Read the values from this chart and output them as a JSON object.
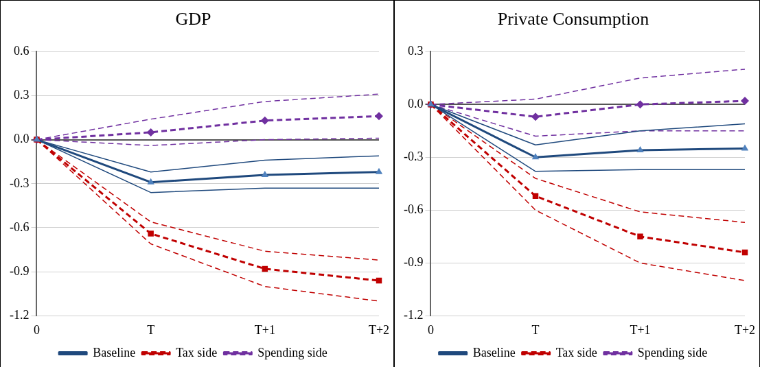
{
  "chart_data": [
    {
      "type": "line",
      "title": "GDP",
      "categories": [
        "0",
        "T",
        "T+1",
        "T+2"
      ],
      "ylim": [
        -1.2,
        0.6
      ],
      "yticks": [
        -1.2,
        {
          "value": -0.9,
          "label": "-0.9"
        },
        {
          "value": -0.6,
          "label": "-0.6"
        },
        {
          "value": -0.3,
          "label": "-0.3"
        },
        {
          "value": 0,
          "label": "0.0"
        },
        0.3,
        0.6
      ],
      "grid": "y",
      "legend": "bottom",
      "series": [
        {
          "name": "Baseline",
          "color": "#1f497d",
          "marker": "triangle",
          "line_style": "solid",
          "values": [
            0,
            -0.29,
            -0.24,
            -0.22
          ]
        },
        {
          "name": "Tax side",
          "color": "#c00000",
          "marker": "square",
          "line_style": "dashed",
          "values": [
            0,
            -0.64,
            -0.88,
            -0.96
          ]
        },
        {
          "name": "Spending side",
          "color": "#7030a0",
          "marker": "diamond",
          "line_style": "dashed",
          "values": [
            0,
            0.05,
            0.13,
            0.16
          ]
        },
        {
          "color": "#1f497d",
          "marker": "none",
          "line_style": "solid",
          "values": [
            0,
            -0.22,
            -0.14,
            -0.11
          ]
        },
        {
          "color": "#1f497d",
          "marker": "none",
          "line_style": "solid",
          "values": [
            0,
            -0.36,
            -0.33,
            -0.33
          ]
        },
        {
          "color": "#c00000",
          "marker": "none",
          "line_style": "dashed",
          "values": [
            0,
            -0.56,
            -0.76,
            -0.82
          ]
        },
        {
          "color": "#c00000",
          "marker": "none",
          "line_style": "dashed",
          "values": [
            0,
            -0.71,
            -1.0,
            -1.1
          ]
        },
        {
          "color": "#7030a0",
          "marker": "none",
          "line_style": "dashed",
          "values": [
            0,
            0.14,
            0.26,
            0.31
          ]
        },
        {
          "color": "#7030a0",
          "marker": "none",
          "line_style": "dashed",
          "values": [
            0,
            -0.04,
            0.0,
            0.01
          ]
        }
      ]
    },
    {
      "type": "line",
      "title": "Private Consumption",
      "categories": [
        "0",
        "T",
        "T+1",
        "T+2"
      ],
      "ylim": [
        -1.2,
        0.3
      ],
      "yticks": [
        -1.2,
        {
          "value": -0.9,
          "label": "-0.9"
        },
        {
          "value": -0.6,
          "label": "-0.6"
        },
        {
          "value": -0.3,
          "label": "-0.3"
        },
        {
          "value": 0,
          "label": "0.0"
        },
        0.3
      ],
      "grid": "y",
      "legend": "bottom",
      "series": [
        {
          "name": "Baseline",
          "color": "#1f497d",
          "marker": "triangle",
          "line_style": "solid",
          "values": [
            0,
            -0.3,
            -0.26,
            -0.25
          ]
        },
        {
          "name": "Tax side",
          "color": "#c00000",
          "marker": "square",
          "line_style": "dashed",
          "values": [
            0,
            -0.52,
            -0.75,
            -0.84
          ]
        },
        {
          "name": "Spending side",
          "color": "#7030a0",
          "marker": "diamond",
          "line_style": "dashed",
          "values": [
            0,
            -0.07,
            0.0,
            0.02
          ]
        },
        {
          "color": "#1f497d",
          "marker": "none",
          "line_style": "solid",
          "values": [
            0,
            -0.23,
            -0.15,
            -0.11
          ]
        },
        {
          "color": "#1f497d",
          "marker": "none",
          "line_style": "solid",
          "values": [
            0,
            -0.38,
            -0.37,
            -0.37
          ]
        },
        {
          "color": "#c00000",
          "marker": "none",
          "line_style": "dashed",
          "values": [
            0,
            -0.42,
            -0.61,
            -0.67
          ]
        },
        {
          "color": "#c00000",
          "marker": "none",
          "line_style": "dashed",
          "values": [
            0,
            -0.6,
            -0.9,
            -1.0
          ]
        },
        {
          "color": "#7030a0",
          "marker": "none",
          "line_style": "dashed",
          "values": [
            0,
            0.03,
            0.15,
            0.2
          ]
        },
        {
          "color": "#7030a0",
          "marker": "none",
          "line_style": "dashed",
          "values": [
            0,
            -0.18,
            -0.15,
            -0.15
          ]
        }
      ]
    }
  ]
}
